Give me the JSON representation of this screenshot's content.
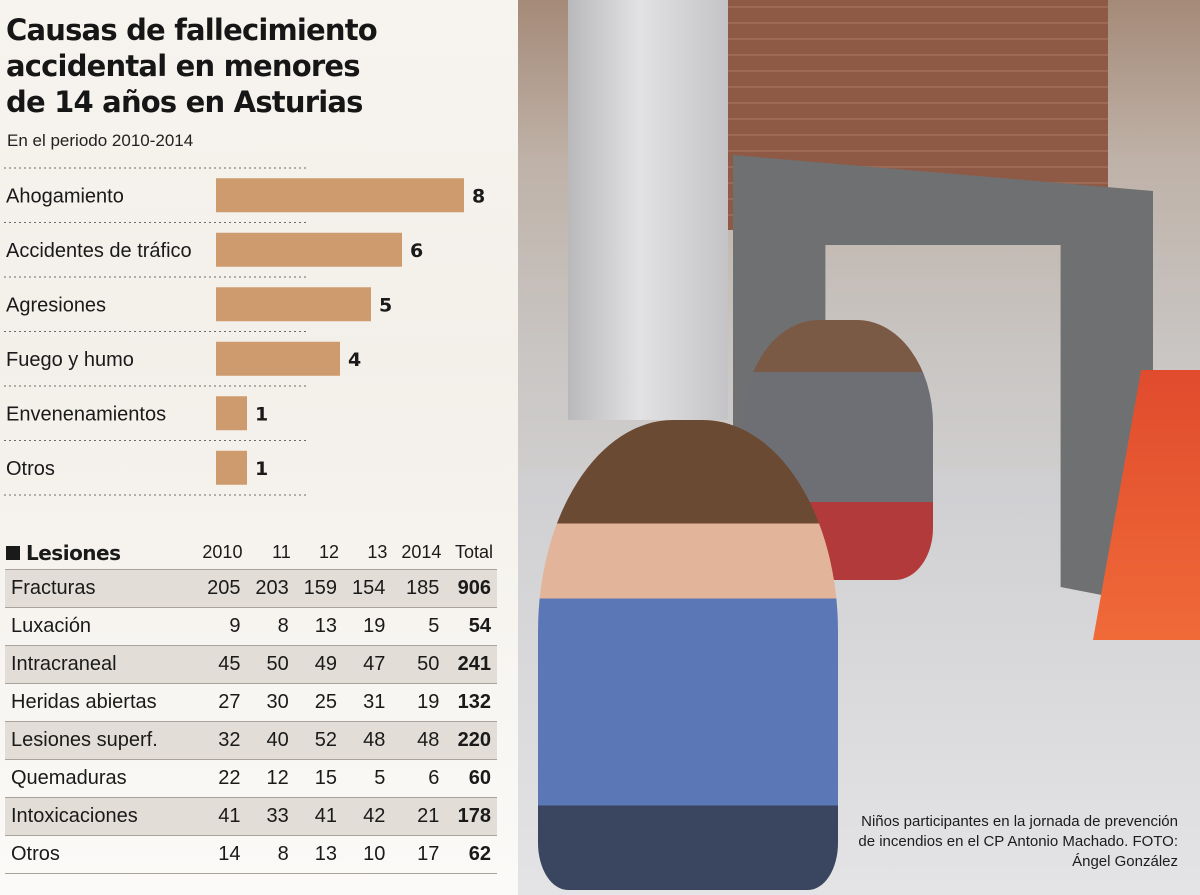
{
  "title": "Causas de fallecimiento\naccidental en menores\nde 14 años en Asturias",
  "subtitle": "En el periodo 2010-2014",
  "chart_data": {
    "type": "bar",
    "orientation": "horizontal",
    "title": "Causas de fallecimiento accidental en menores de 14 años en Asturias",
    "subtitle": "En el periodo 2010-2014",
    "categories": [
      "Ahogamiento",
      "Accidentes de tráfico",
      "Agresiones",
      "Fuego y humo",
      "Envenenamientos",
      "Otros"
    ],
    "values": [
      8,
      6,
      5,
      4,
      1,
      1
    ],
    "xlim": [
      0,
      8
    ],
    "color": "#cd9b6e",
    "grid": false
  },
  "table": {
    "title": "Lesiones",
    "columns": [
      "2010",
      "11",
      "12",
      "13",
      "2014",
      "Total"
    ],
    "rows": [
      {
        "name": "Fracturas",
        "values": [
          "205",
          "203",
          "159",
          "154",
          "185"
        ],
        "total": "906"
      },
      {
        "name": "Luxación",
        "values": [
          "9",
          "8",
          "13",
          "19",
          "5"
        ],
        "total": "54"
      },
      {
        "name": "Intracraneal",
        "values": [
          "45",
          "50",
          "49",
          "47",
          "50"
        ],
        "total": "241"
      },
      {
        "name": "Heridas abiertas",
        "values": [
          "27",
          "30",
          "25",
          "31",
          "19"
        ],
        "total": "132"
      },
      {
        "name": "Lesiones superf.",
        "values": [
          "32",
          "40",
          "52",
          "48",
          "48"
        ],
        "total": "220"
      },
      {
        "name": "Quemaduras",
        "values": [
          "22",
          "12",
          "15",
          "5",
          "6"
        ],
        "total": "60"
      },
      {
        "name": "Intoxicaciones",
        "values": [
          "41",
          "33",
          "41",
          "42",
          "21"
        ],
        "total": "178"
      },
      {
        "name": "Otros",
        "values": [
          "14",
          "8",
          "13",
          "10",
          "17"
        ],
        "total": "62"
      }
    ]
  },
  "caption": "Niños participantes en la jornada de prevención de incendios en el CP Antonio Machado. FOTO: Ángel González",
  "colors": {
    "bar": "#cd9b6e",
    "row_shade": "#e2ddd6",
    "divider": "#a9a39b"
  }
}
